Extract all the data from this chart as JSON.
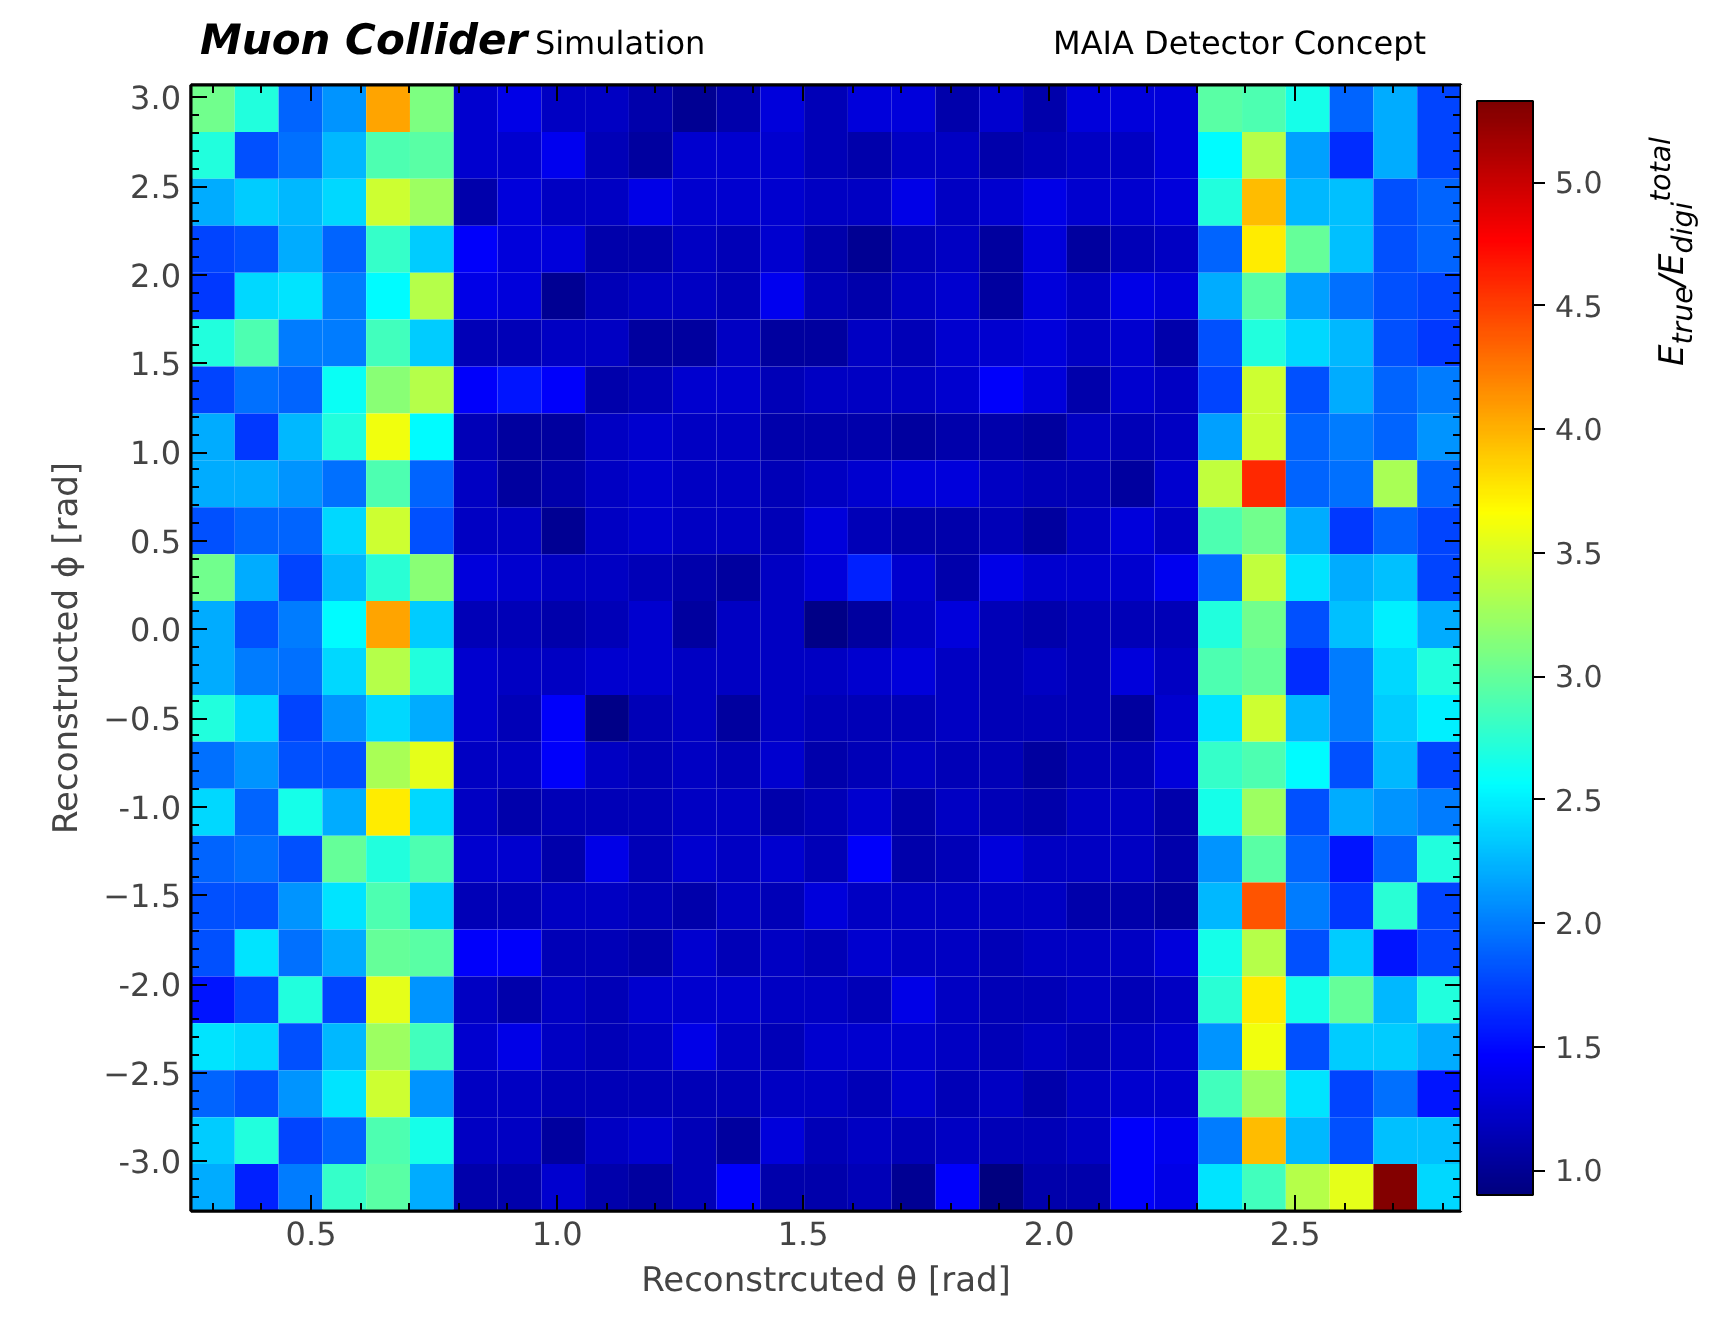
{
  "chart_data": {
    "type": "heatmap",
    "title": "Muon Collider",
    "subtitle": "Simulation",
    "annotations": [
      "MAIA Detector Concept"
    ],
    "xlabel": "Reconstrcuted θ [rad]",
    "ylabel": "Reconstructed ϕ [rad]",
    "clabel": "E$_{true}$/E$_{digi}$$^{total}$",
    "xlim": [
      0.256,
      2.837
    ],
    "ylim": [
      -3.28,
      3.07
    ],
    "xticks": [
      0.5,
      {
        "value": 1,
        "label": "1.0"
      },
      1.5,
      {
        "value": 2,
        "label": "2.0"
      },
      2.5
    ],
    "yticks": [
      {
        "value": -3,
        "label": "-3.0"
      },
      -2.5,
      {
        "value": -2,
        "label": "-2.0"
      },
      -1.5,
      {
        "value": -1,
        "label": "-1.0"
      },
      -0.5,
      {
        "value": 0,
        "label": "0.0"
      },
      0.5,
      {
        "value": 1,
        "label": "1.0"
      },
      1.5,
      {
        "value": 2,
        "label": "2.0"
      },
      2.5,
      {
        "value": 3,
        "label": "3.0"
      }
    ],
    "clim": [
      0.9,
      5.33
    ],
    "cticks": [
      {
        "value": 1,
        "label": "1.0"
      },
      1.5,
      {
        "value": 2,
        "label": "2.0"
      },
      2.5,
      {
        "value": 3,
        "label": "3.0"
      },
      3.5,
      {
        "value": 4,
        "label": "4.0"
      },
      4.5,
      {
        "value": 5,
        "label": "5.0"
      }
    ],
    "cells": [
      [
        3.05,
        2.7,
        1.9,
        2.1,
        4.05,
        3.1,
        1.25,
        1.35,
        1.2,
        1.2,
        1.1,
        1.0,
        1.1,
        1.3,
        1.15,
        1.3,
        1.3,
        1.1,
        1.25,
        1.1,
        1.3,
        1.3,
        1.3,
        2.95,
        2.9,
        2.65,
        1.9,
        2.2,
        1.75
      ],
      [
        2.7,
        1.8,
        1.95,
        2.25,
        2.9,
        2.95,
        1.25,
        1.25,
        1.4,
        1.15,
        1.05,
        1.25,
        1.25,
        1.25,
        1.15,
        1.1,
        1.2,
        1.2,
        1.1,
        1.15,
        1.2,
        1.2,
        1.3,
        2.55,
        3.35,
        2.15,
        1.65,
        2.2,
        1.75
      ],
      [
        2.2,
        2.35,
        2.25,
        2.4,
        3.45,
        3.25,
        1.1,
        1.3,
        1.2,
        1.2,
        1.35,
        1.25,
        1.25,
        1.25,
        1.2,
        1.2,
        1.35,
        1.2,
        1.25,
        1.35,
        1.25,
        1.25,
        1.3,
        2.7,
        3.95,
        2.25,
        2.3,
        1.8,
        1.9
      ],
      [
        1.75,
        1.8,
        2.2,
        1.9,
        2.8,
        2.35,
        1.45,
        1.3,
        1.3,
        1.1,
        1.1,
        1.2,
        1.15,
        1.25,
        1.1,
        1.0,
        1.15,
        1.2,
        1.05,
        1.3,
        1.05,
        1.15,
        1.2,
        1.9,
        3.75,
        3.0,
        2.3,
        1.8,
        1.9
      ],
      [
        1.7,
        2.4,
        2.45,
        2.0,
        2.55,
        3.35,
        1.35,
        1.3,
        1.0,
        1.15,
        1.2,
        1.2,
        1.15,
        1.4,
        1.15,
        1.1,
        1.2,
        1.25,
        1.05,
        1.3,
        1.2,
        1.35,
        1.3,
        2.2,
        2.95,
        2.15,
        1.95,
        1.8,
        1.75
      ],
      [
        2.7,
        2.9,
        2.0,
        2.0,
        2.85,
        2.35,
        1.15,
        1.15,
        1.2,
        1.2,
        1.05,
        1.05,
        1.2,
        1.05,
        1.05,
        1.2,
        1.15,
        1.25,
        1.25,
        1.3,
        1.2,
        1.25,
        1.1,
        1.8,
        2.7,
        2.4,
        2.25,
        1.8,
        1.7
      ],
      [
        1.75,
        1.95,
        1.9,
        2.6,
        3.15,
        3.35,
        1.45,
        1.55,
        1.45,
        1.1,
        1.15,
        1.25,
        1.25,
        1.15,
        1.2,
        1.2,
        1.2,
        1.25,
        1.45,
        1.3,
        1.1,
        1.25,
        1.2,
        1.75,
        3.45,
        1.8,
        2.2,
        1.9,
        2.0
      ],
      [
        2.2,
        1.7,
        2.25,
        2.7,
        3.6,
        2.55,
        1.15,
        1.05,
        1.05,
        1.2,
        1.25,
        1.2,
        1.2,
        1.1,
        1.1,
        1.1,
        1.05,
        1.1,
        1.1,
        1.05,
        1.2,
        1.15,
        1.2,
        2.15,
        3.45,
        1.9,
        2.0,
        1.9,
        2.1
      ],
      [
        2.2,
        2.2,
        2.1,
        1.95,
        2.9,
        1.9,
        1.2,
        1.05,
        1.1,
        1.2,
        1.25,
        1.2,
        1.2,
        1.15,
        1.2,
        1.25,
        1.3,
        1.3,
        1.2,
        1.15,
        1.15,
        1.05,
        1.25,
        3.4,
        4.6,
        1.9,
        1.95,
        3.3,
        1.9
      ],
      [
        1.8,
        1.9,
        1.9,
        2.4,
        3.45,
        1.8,
        1.2,
        1.2,
        1.0,
        1.2,
        1.25,
        1.2,
        1.2,
        1.15,
        1.3,
        1.15,
        1.1,
        1.1,
        1.15,
        1.05,
        1.2,
        1.3,
        1.2,
        2.9,
        3.05,
        2.2,
        1.7,
        1.9,
        1.75
      ],
      [
        3.05,
        2.2,
        1.75,
        2.25,
        2.75,
        3.15,
        1.3,
        1.25,
        1.2,
        1.2,
        1.15,
        1.1,
        1.05,
        1.2,
        1.3,
        1.6,
        1.25,
        1.1,
        1.35,
        1.25,
        1.25,
        1.25,
        1.4,
        1.95,
        3.4,
        2.45,
        2.2,
        2.3,
        1.75
      ],
      [
        2.2,
        1.8,
        2.0,
        2.55,
        4.05,
        2.35,
        1.15,
        1.15,
        1.1,
        1.15,
        1.25,
        1.05,
        1.2,
        1.2,
        0.95,
        1.05,
        1.2,
        1.3,
        1.15,
        1.1,
        1.15,
        1.15,
        1.15,
        2.7,
        3.05,
        1.8,
        2.3,
        2.5,
        2.2
      ],
      [
        2.2,
        2.0,
        1.95,
        2.4,
        3.35,
        2.7,
        1.25,
        1.2,
        1.2,
        1.25,
        1.25,
        1.2,
        1.2,
        1.2,
        1.2,
        1.25,
        1.3,
        1.2,
        1.15,
        1.2,
        1.15,
        1.3,
        1.2,
        2.9,
        3.0,
        1.65,
        2.0,
        2.4,
        2.7
      ],
      [
        2.7,
        2.4,
        1.75,
        2.1,
        2.4,
        2.2,
        1.25,
        1.15,
        1.45,
        0.95,
        1.15,
        1.2,
        1.05,
        1.2,
        1.15,
        1.15,
        1.15,
        1.2,
        1.15,
        1.15,
        1.15,
        1.05,
        1.25,
        2.45,
        3.45,
        2.25,
        2.0,
        2.35,
        2.5
      ],
      [
        1.95,
        2.1,
        1.8,
        1.8,
        3.3,
        3.55,
        1.2,
        1.2,
        1.45,
        1.2,
        1.15,
        1.2,
        1.15,
        1.25,
        1.1,
        1.15,
        1.2,
        1.15,
        1.15,
        1.05,
        1.15,
        1.15,
        1.3,
        2.8,
        2.9,
        2.55,
        1.8,
        2.25,
        1.75
      ],
      [
        2.4,
        1.9,
        2.65,
        2.2,
        3.75,
        2.4,
        1.2,
        1.1,
        1.15,
        1.15,
        1.15,
        1.2,
        1.2,
        1.1,
        1.15,
        1.25,
        1.1,
        1.2,
        1.15,
        1.1,
        1.2,
        1.2,
        1.1,
        2.65,
        3.25,
        1.8,
        2.2,
        2.1,
        2.0
      ],
      [
        1.9,
        1.95,
        1.8,
        3.0,
        2.7,
        2.9,
        1.25,
        1.25,
        1.1,
        1.35,
        1.15,
        1.25,
        1.2,
        1.25,
        1.15,
        1.45,
        1.1,
        1.15,
        1.3,
        1.2,
        1.2,
        1.2,
        1.1,
        2.1,
        2.95,
        1.9,
        1.55,
        1.9,
        2.7
      ],
      [
        1.8,
        1.8,
        2.1,
        2.45,
        2.9,
        2.35,
        1.15,
        1.15,
        1.2,
        1.2,
        1.15,
        1.1,
        1.2,
        1.15,
        1.3,
        1.2,
        1.2,
        1.2,
        1.2,
        1.2,
        1.1,
        1.1,
        1.05,
        2.25,
        4.4,
        2.0,
        1.7,
        2.75,
        1.75
      ],
      [
        1.8,
        2.45,
        1.95,
        2.2,
        3.0,
        2.95,
        1.45,
        1.45,
        1.15,
        1.15,
        1.1,
        1.25,
        1.15,
        1.2,
        1.15,
        1.25,
        1.2,
        1.2,
        1.15,
        1.2,
        1.2,
        1.2,
        1.3,
        2.65,
        3.35,
        1.8,
        2.35,
        1.55,
        1.75
      ],
      [
        1.55,
        1.75,
        2.7,
        1.75,
        3.55,
        2.1,
        1.2,
        1.1,
        1.2,
        1.15,
        1.25,
        1.25,
        1.25,
        1.2,
        1.2,
        1.15,
        1.35,
        1.2,
        1.15,
        1.15,
        1.2,
        1.15,
        1.2,
        2.75,
        3.75,
        2.65,
        3.0,
        2.25,
        2.7
      ],
      [
        2.45,
        2.4,
        1.8,
        2.25,
        3.25,
        2.85,
        1.25,
        1.35,
        1.2,
        1.15,
        1.2,
        1.35,
        1.2,
        1.15,
        1.25,
        1.25,
        1.25,
        1.2,
        1.15,
        1.2,
        1.15,
        1.2,
        1.25,
        2.1,
        3.6,
        1.8,
        2.35,
        2.35,
        2.2
      ],
      [
        1.9,
        1.8,
        2.1,
        2.45,
        3.45,
        2.1,
        1.2,
        1.2,
        1.15,
        1.15,
        1.15,
        1.15,
        1.15,
        1.2,
        1.2,
        1.15,
        1.25,
        1.15,
        1.2,
        1.1,
        1.2,
        1.25,
        1.25,
        2.85,
        3.25,
        2.45,
        1.75,
        1.95,
        1.55
      ],
      [
        2.35,
        2.7,
        1.75,
        1.9,
        2.9,
        2.65,
        1.2,
        1.2,
        1.05,
        1.2,
        1.25,
        1.15,
        1.05,
        1.3,
        1.15,
        1.2,
        1.15,
        1.2,
        1.15,
        1.15,
        1.2,
        1.45,
        1.4,
        2.0,
        3.95,
        2.25,
        1.8,
        2.3,
        2.3
      ],
      [
        2.2,
        1.6,
        2.0,
        2.8,
        2.95,
        2.2,
        1.1,
        1.1,
        1.25,
        1.1,
        1.05,
        1.15,
        1.45,
        1.1,
        1.1,
        1.15,
        1.0,
        1.45,
        0.9,
        1.1,
        1.1,
        1.45,
        1.35,
        2.45,
        2.85,
        3.35,
        3.55,
        5.3,
        2.4
      ]
    ]
  }
}
